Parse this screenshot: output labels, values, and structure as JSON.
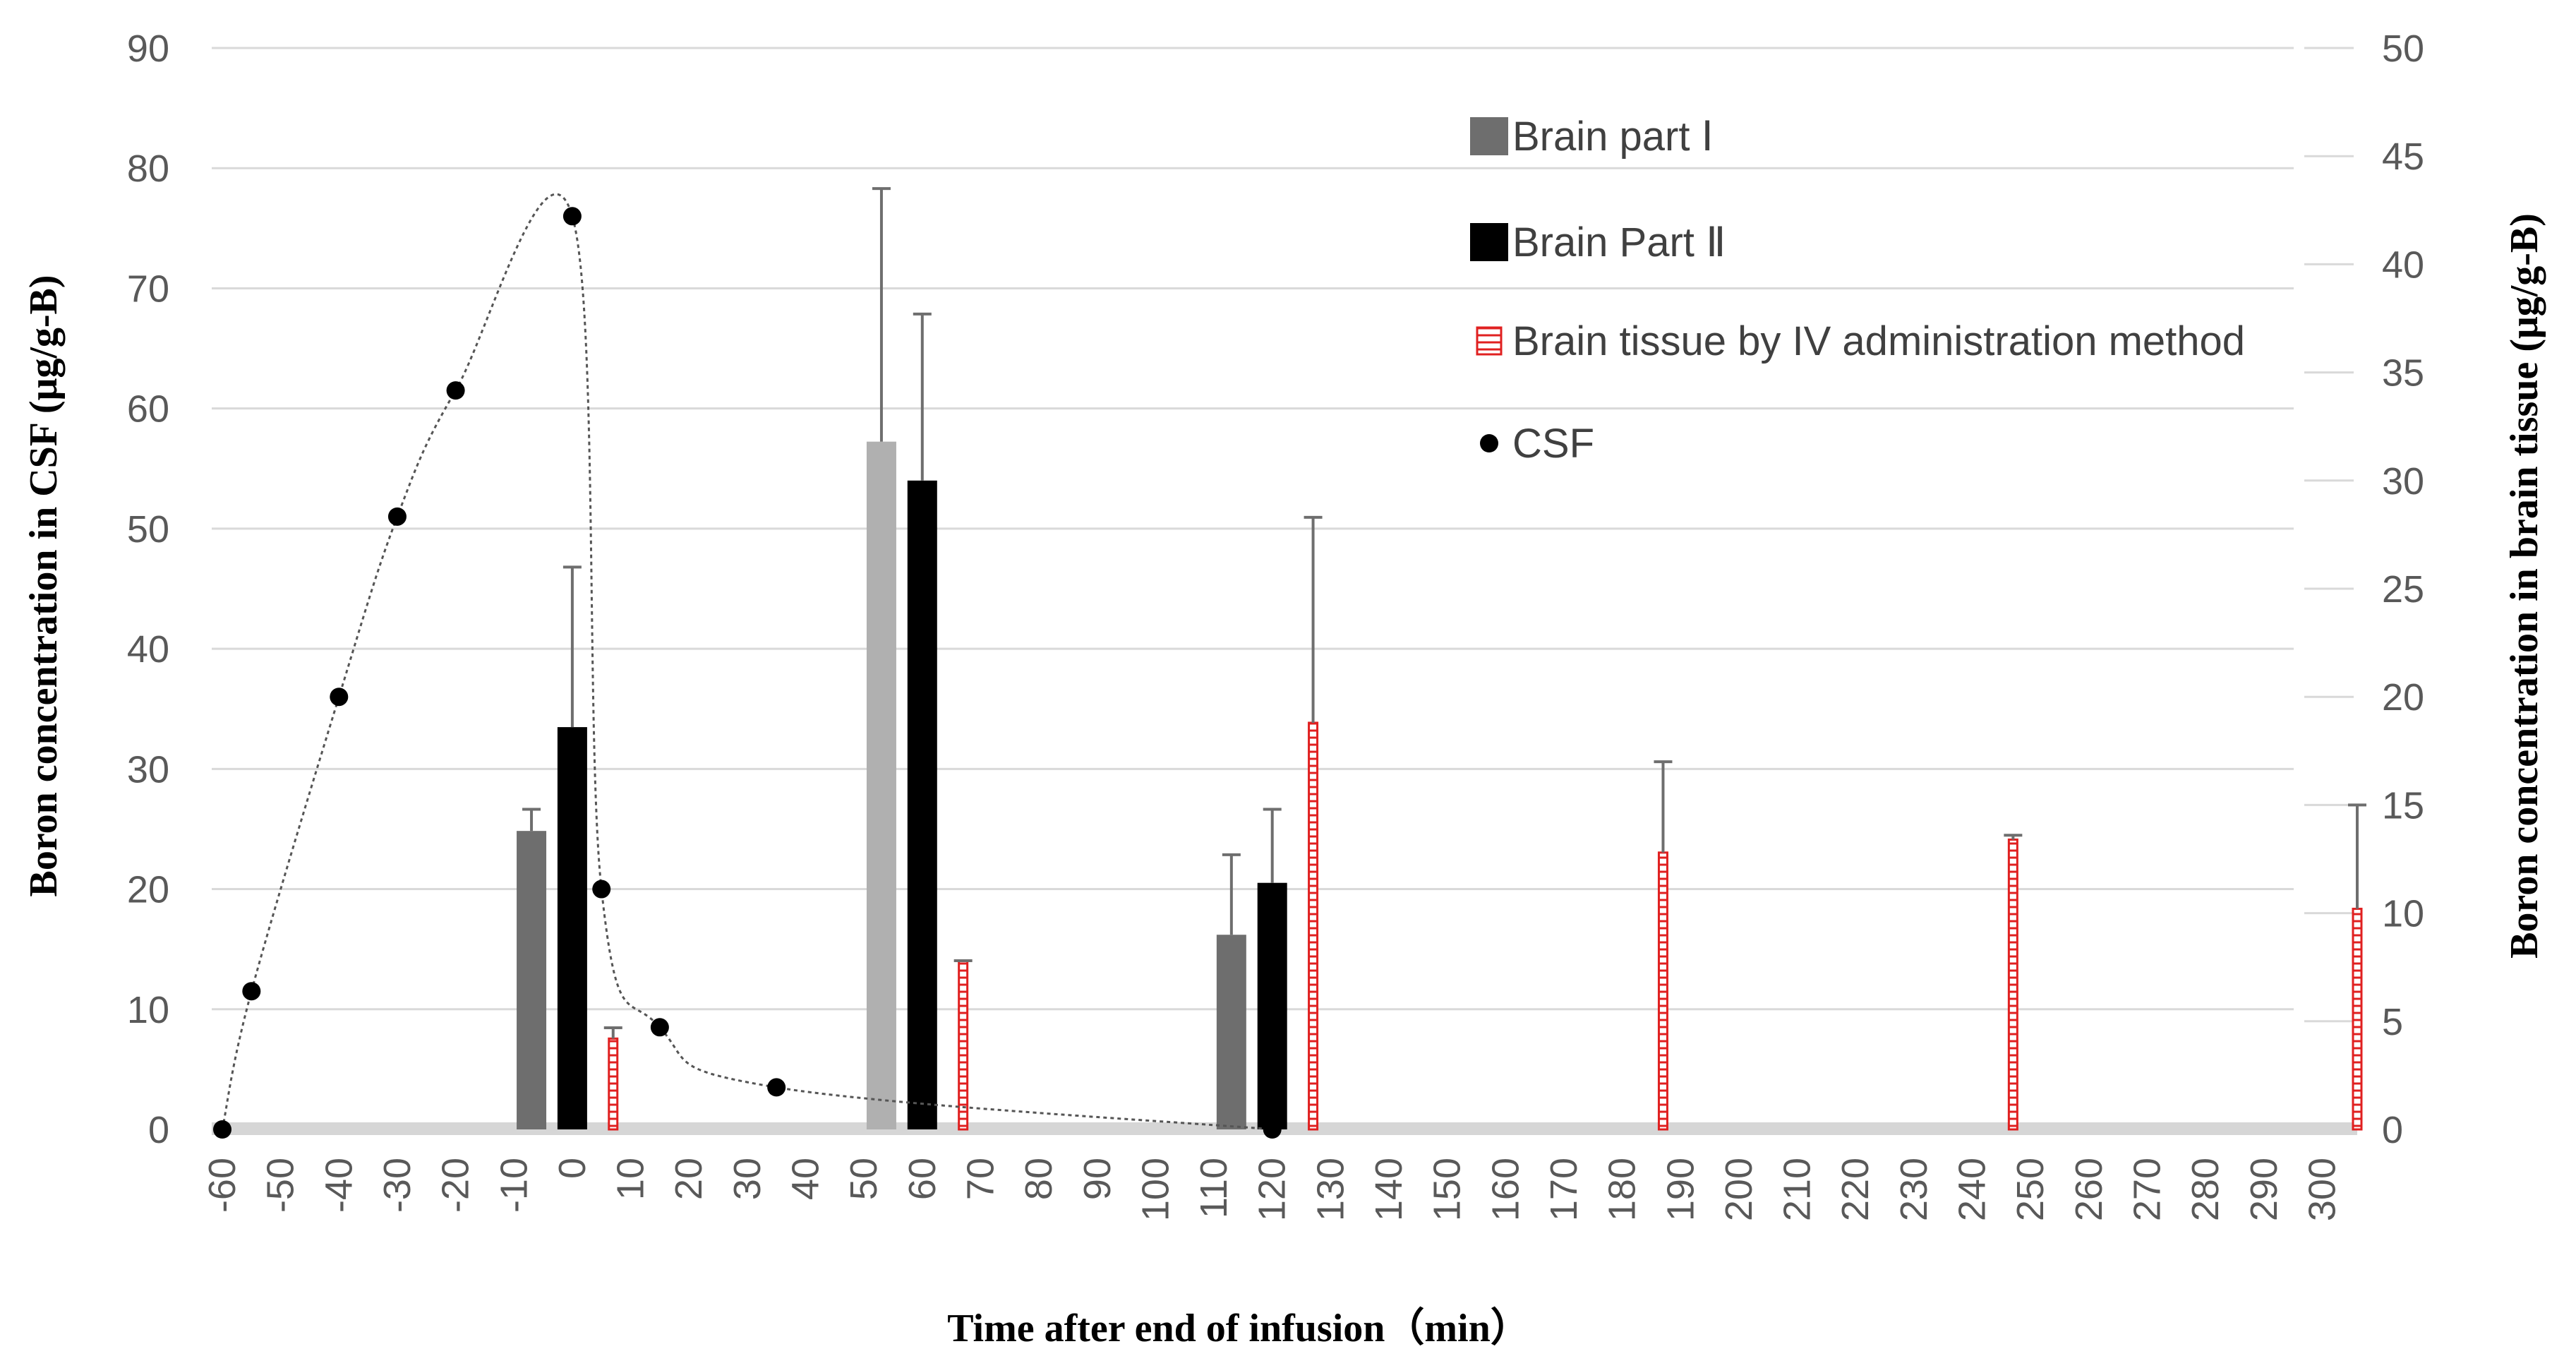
{
  "chart_data": {
    "type": "bar",
    "xlabel": "Time after end of infusion（min）",
    "ylabel_left": "Boron concentration in CSF (μg/g-B)",
    "ylabel_right": "Boron concentration in brain tissue (μg/g-B)",
    "x_ticks": [
      "-60",
      "-50",
      "-40",
      "-30",
      "-20",
      "-10",
      "0",
      "10",
      "20",
      "30",
      "40",
      "50",
      "60",
      "70",
      "80",
      "90",
      "100",
      "110",
      "120",
      "130",
      "140",
      "150",
      "160",
      "170",
      "180",
      "190",
      "200",
      "210",
      "220",
      "230",
      "240",
      "250",
      "260",
      "270",
      "280",
      "290",
      "300"
    ],
    "xlim": [
      -60,
      306
    ],
    "ylim_left": [
      0,
      90
    ],
    "ylim_right": [
      0,
      50
    ],
    "y_ticks_left": [
      "0",
      "10",
      "20",
      "30",
      "40",
      "50",
      "60",
      "70",
      "80",
      "90"
    ],
    "y_ticks_right": [
      "0",
      "5",
      "10",
      "15",
      "20",
      "25",
      "30",
      "35",
      "40",
      "45",
      "50"
    ],
    "grid": "horizontal",
    "legend_position": "top-right",
    "legend": [
      {
        "label": "Brain part Ⅰ",
        "marker": "bar-gray"
      },
      {
        "label": "Brain Part Ⅱ",
        "marker": "bar-black"
      },
      {
        "label": "Brain tissue by IV administration method",
        "marker": "bar-red-hatched"
      },
      {
        "label": "CSF",
        "marker": "dot"
      }
    ],
    "series": [
      {
        "name": "Brain part Ⅰ",
        "axis": "right",
        "x": [
          -7,
          53,
          113
        ],
        "values": [
          13.8,
          31.8,
          9.0
        ],
        "error_upper": [
          14.8,
          43.5,
          12.7
        ],
        "colors": [
          "#6e6e6e",
          "#b0b0b0",
          "#6e6e6e"
        ]
      },
      {
        "name": "Brain Part Ⅱ",
        "axis": "right",
        "x": [
          0,
          60,
          120
        ],
        "values": [
          18.6,
          30.0,
          11.4
        ],
        "error_upper": [
          26.0,
          37.7,
          14.8
        ]
      },
      {
        "name": "Brain tissue by IV administration method",
        "axis": "right",
        "x": [
          7,
          67,
          127,
          187,
          247,
          306
        ],
        "values": [
          4.2,
          7.8,
          18.8,
          12.8,
          13.4,
          10.2
        ],
        "error_upper": [
          4.7,
          7.8,
          28.3,
          17.0,
          13.6,
          15.0
        ]
      },
      {
        "name": "CSF",
        "axis": "left",
        "x": [
          -60,
          -55,
          -40,
          -30,
          -20,
          0,
          5,
          15,
          35,
          120
        ],
        "values": [
          0,
          11.5,
          36,
          51,
          61.5,
          76,
          20,
          8.5,
          3.5,
          0
        ]
      }
    ],
    "colors": {
      "brain_part_1": "#6e6e6e",
      "brain_part_1_highlight": "#b0b0b0",
      "brain_part_2": "#000000",
      "iv_method": "#e02020",
      "csf": "#000000",
      "grid": "#d9d9d9",
      "tick_text": "#595959"
    }
  }
}
